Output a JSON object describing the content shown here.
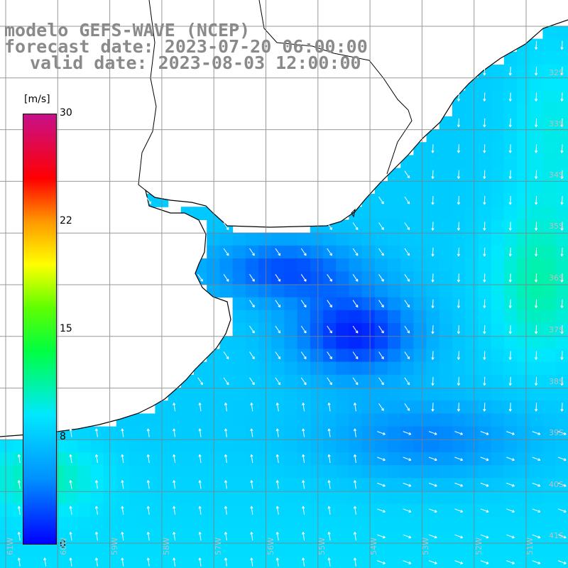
{
  "header": {
    "line1": "modelo GEFS-WAVE (NCEP)",
    "line2": "forecast date: 2023-07-20 06:00:00",
    "line3": "valid date: 2023-08-03 12:00:00"
  },
  "colorbar": {
    "unit": "[m/s]",
    "ticks": [
      {
        "label": "30",
        "value": 30
      },
      {
        "label": "22",
        "value": 22
      },
      {
        "label": "15",
        "value": 15
      },
      {
        "label": "8",
        "value": 8
      },
      {
        "label": "0",
        "value": 0
      }
    ],
    "colors": [
      "#0000ff",
      "#0090ff",
      "#00e8ff",
      "#00ff40",
      "#60ff00",
      "#ffff00",
      "#ff9900",
      "#ff0000",
      "#c8108a"
    ]
  },
  "chart_data": {
    "type": "heatmap",
    "title": "modelo GEFS-WAVE (NCEP)",
    "variable_unit": "m/s",
    "colorbar_range": [
      0,
      30
    ],
    "grid": true,
    "lat_labels": [
      "32S",
      "33S",
      "34S",
      "35S",
      "36S",
      "37S",
      "38S",
      "39S",
      "40S",
      "41S"
    ],
    "lon_labels": [
      "61W",
      "60W",
      "59W",
      "58W",
      "57W",
      "56W",
      "55W",
      "54W",
      "53W",
      "52W",
      "51W"
    ],
    "colors": {
      "land": "#ffffff",
      "gridline": "#808080",
      "coastline": "#000000",
      "arrow": "#ffffff"
    }
  }
}
